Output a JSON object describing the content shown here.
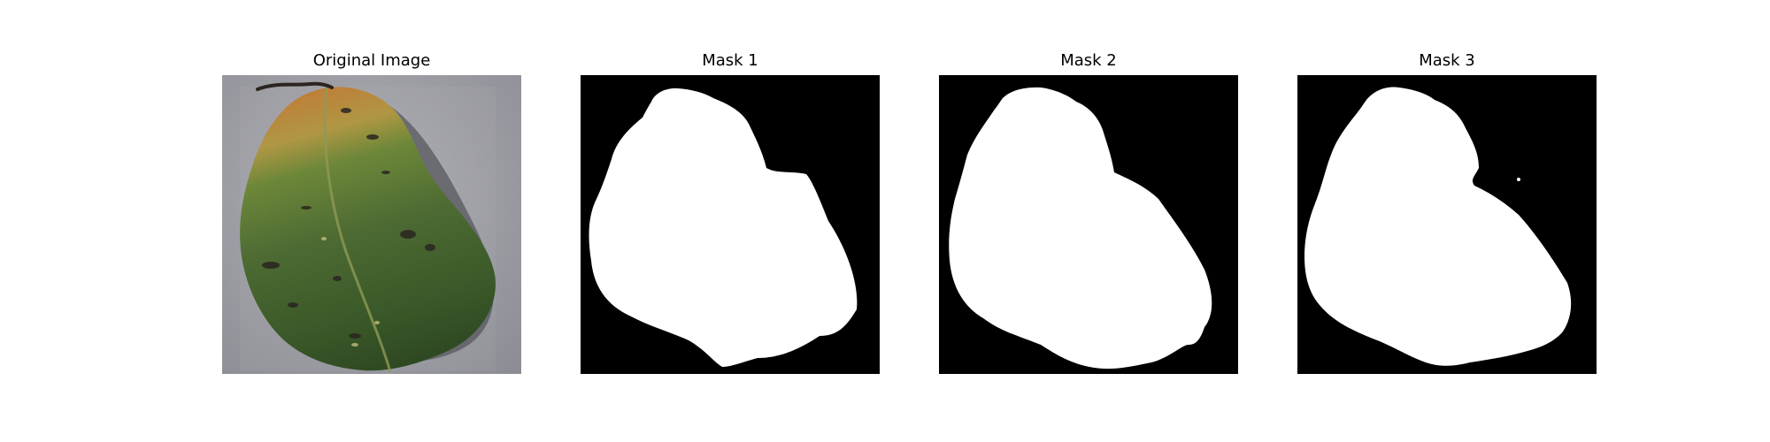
{
  "panels": [
    {
      "title": "Original Image"
    },
    {
      "title": "Mask 1"
    },
    {
      "title": "Mask 2"
    },
    {
      "title": "Mask 3"
    }
  ],
  "colors": {
    "background": "#ffffff",
    "mask_background": "#000000",
    "mask_foreground": "#ffffff",
    "ground": "#9c9ca3",
    "leaf_green_dark": "#2f4a22",
    "leaf_green": "#4f6d34",
    "leaf_yellow": "#b8a24a",
    "leaf_orange": "#c2823a",
    "shadow": "#4d4e55"
  }
}
